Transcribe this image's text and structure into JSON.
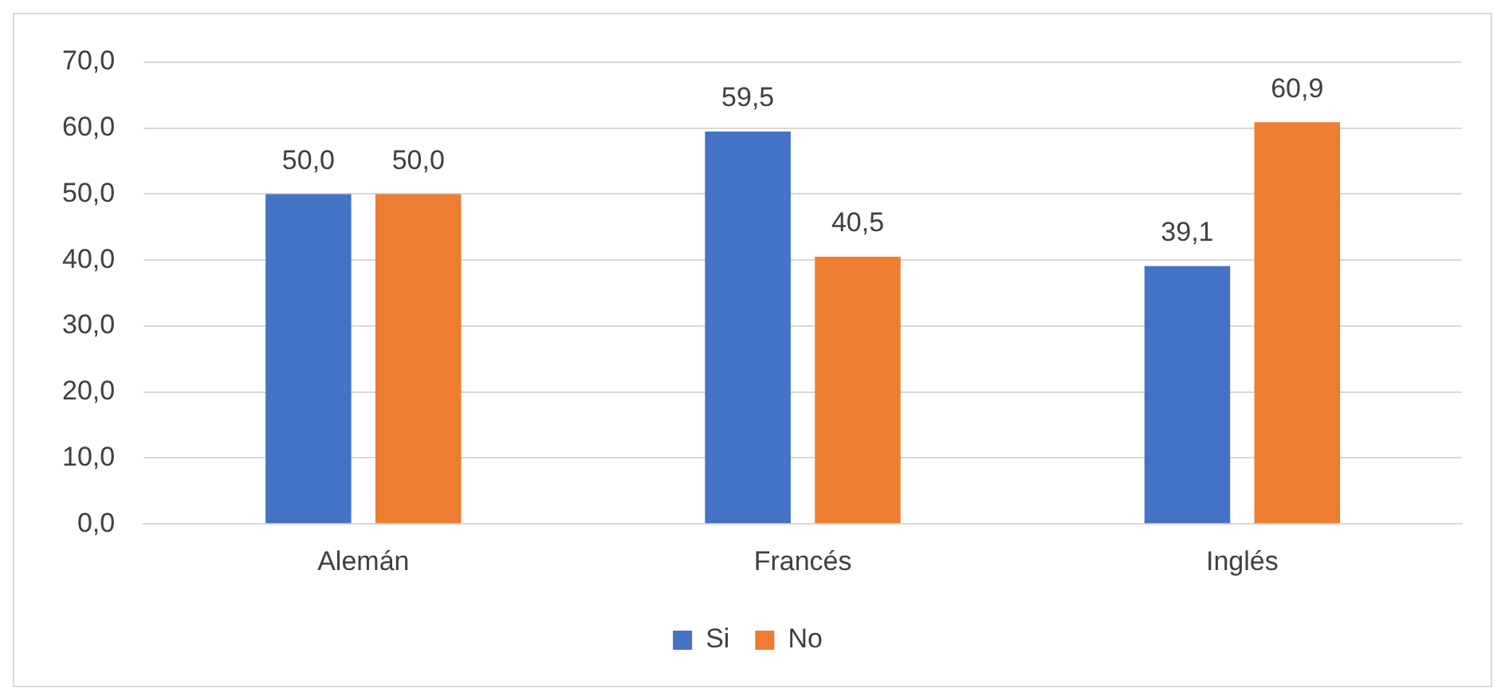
{
  "chart_data": {
    "type": "bar",
    "categories": [
      "Alemán",
      "Francés",
      "Inglés"
    ],
    "series": [
      {
        "name": "Si",
        "color": "#4472c4",
        "values": [
          50.0,
          59.5,
          39.1
        ],
        "value_labels": [
          "50,0",
          "59,5",
          "39,1"
        ]
      },
      {
        "name": "No",
        "color": "#ed7d31",
        "values": [
          50.0,
          40.5,
          60.9
        ],
        "value_labels": [
          "50,0",
          "40,5",
          "60,9"
        ]
      }
    ],
    "ylim": [
      0,
      70
    ],
    "yticks": [
      {
        "value": 0,
        "label": "0,0"
      },
      {
        "value": 10,
        "label": "10,0"
      },
      {
        "value": 20,
        "label": "20,0"
      },
      {
        "value": 30,
        "label": "30,0"
      },
      {
        "value": 40,
        "label": "40,0"
      },
      {
        "value": 50,
        "label": "50,0"
      },
      {
        "value": 60,
        "label": "60,0"
      },
      {
        "value": 70,
        "label": "70,0"
      }
    ],
    "grid": "y",
    "legend": "bottom"
  }
}
